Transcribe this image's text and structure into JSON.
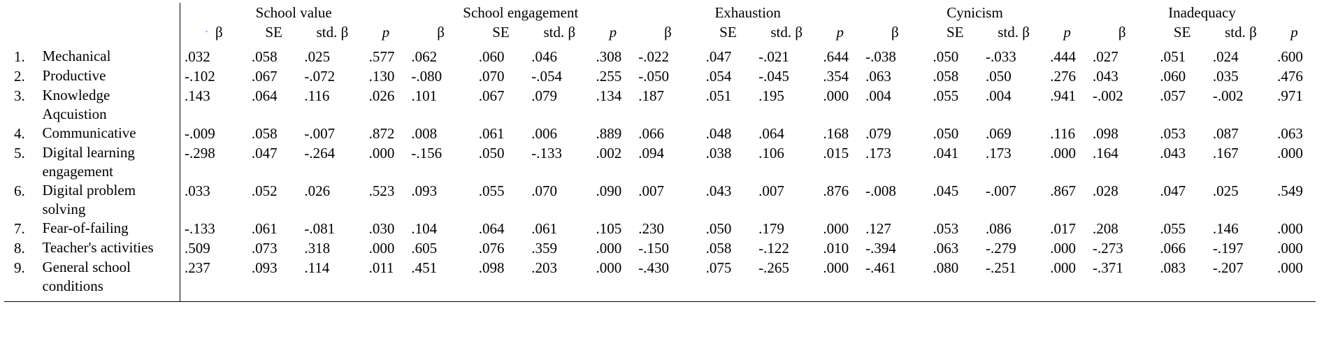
{
  "groups": [
    "School value",
    "School engagement",
    "Exhaustion",
    "Cynicism",
    "Inadequacy"
  ],
  "subheaders": {
    "beta": "β",
    "se": "SE",
    "std_beta": "std. β",
    "std_beta_split": [
      "std.",
      "β"
    ],
    "p": "p"
  },
  "marker_dot": "·",
  "rows": [
    {
      "idx": "1.",
      "label": "Mechanical",
      "values": [
        ".032",
        ".058",
        ".025",
        ".577",
        ".062",
        ".060",
        ".046",
        ".308",
        "-.022",
        ".047",
        "-.021",
        ".644",
        "-.038",
        ".050",
        "-.033",
        ".444",
        ".027",
        ".051",
        ".024",
        ".600"
      ]
    },
    {
      "idx": "2.",
      "label": "Productive",
      "values": [
        "-.102",
        ".067",
        "-.072",
        ".130",
        "-.080",
        ".070",
        "-.054",
        ".255",
        "-.050",
        ".054",
        "-.045",
        ".354",
        ".063",
        ".058",
        ".050",
        ".276",
        ".043",
        ".060",
        ".035",
        ".476"
      ]
    },
    {
      "idx": "3.",
      "label": "Knowledge Aqcuistion",
      "values": [
        ".143",
        ".064",
        ".116",
        ".026",
        ".101",
        ".067",
        ".079",
        ".134",
        ".187",
        ".051",
        ".195",
        ".000",
        ".004",
        ".055",
        ".004",
        ".941",
        "-.002",
        ".057",
        "-.002",
        ".971"
      ]
    },
    {
      "idx": "4.",
      "label": "Communicative",
      "values": [
        "-.009",
        ".058",
        "-.007",
        ".872",
        ".008",
        ".061",
        ".006",
        ".889",
        ".066",
        ".048",
        ".064",
        ".168",
        ".079",
        ".050",
        ".069",
        ".116",
        ".098",
        ".053",
        ".087",
        ".063"
      ]
    },
    {
      "idx": "5.",
      "label": "Digital learning engagement",
      "values": [
        "-.298",
        ".047",
        "-.264",
        ".000",
        "-.156",
        ".050",
        "-.133",
        ".002",
        ".094",
        ".038",
        ".106",
        ".015",
        ".173",
        ".041",
        ".173",
        ".000",
        ".164",
        ".043",
        ".167",
        ".000"
      ]
    },
    {
      "idx": "6.",
      "label": "Digital problem solving",
      "values": [
        ".033",
        ".052",
        ".026",
        ".523",
        ".093",
        ".055",
        ".070",
        ".090",
        ".007",
        ".043",
        ".007",
        ".876",
        "-.008",
        ".045",
        "-.007",
        ".867",
        ".028",
        ".047",
        ".025",
        ".549"
      ]
    },
    {
      "idx": "7.",
      "label": "Fear-of-failing",
      "values": [
        "-.133",
        ".061",
        "-.081",
        ".030",
        ".104",
        ".064",
        ".061",
        ".105",
        ".230",
        ".050",
        ".179",
        ".000",
        ".127",
        ".053",
        ".086",
        ".017",
        ".208",
        ".055",
        ".146",
        ".000"
      ]
    },
    {
      "idx": "8.",
      "label": "Teacher's activities",
      "values": [
        ".509",
        ".073",
        ".318",
        ".000",
        ".605",
        ".076",
        ".359",
        ".000",
        "-.150",
        ".058",
        "-.122",
        ".010",
        "-.394",
        ".063",
        "-.279",
        ".000",
        "-.273",
        ".066",
        "-.197",
        ".000"
      ]
    },
    {
      "idx": "9.",
      "label": "General school conditions",
      "values": [
        ".237",
        ".093",
        ".114",
        ".011",
        ".451",
        ".098",
        ".203",
        ".000",
        "-.430",
        ".075",
        "-.265",
        ".000",
        "-.461",
        ".080",
        "-.251",
        ".000",
        "-.371",
        ".083",
        "-.207",
        ".000"
      ]
    }
  ]
}
